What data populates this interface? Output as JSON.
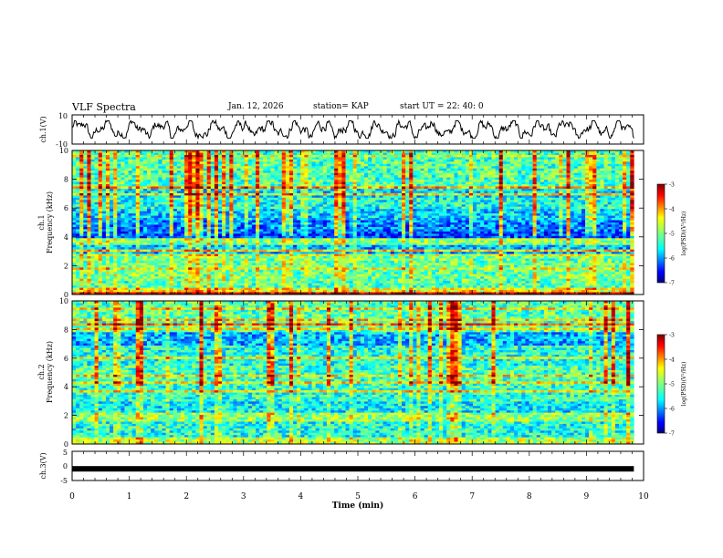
{
  "header": {
    "title": "VLF Spectra",
    "date": "Jan. 12, 2026",
    "station": "station= KAP",
    "start": "start UT =  22: 40: 0"
  },
  "chart_data": [
    {
      "type": "line",
      "panel": "ch1-waveform",
      "ylabel": "ch.1(V)",
      "ylim": [
        -10,
        10
      ],
      "y_tick_labels": [
        "10",
        "-10"
      ],
      "x_range": [
        0,
        9.83
      ],
      "description_values": "noisy waveform around 0 V with excursions about ±4 V"
    },
    {
      "type": "heatmap",
      "panel": "ch1-spectrogram",
      "ylabel": "ch.1\nFrequency (kHz)",
      "ylim": [
        0,
        10
      ],
      "y_tick_labels": [
        "0",
        "2",
        "4",
        "6",
        "8",
        "10"
      ],
      "xlim": [
        0,
        9.83
      ],
      "colorbar": {
        "label": "log(PSD)(V²/Hz)",
        "range": [
          -7,
          -3
        ],
        "tick_labels": [
          "-3",
          "-4",
          "-5",
          "-6",
          "-7"
        ]
      }
    },
    {
      "type": "heatmap",
      "panel": "ch2-spectrogram",
      "ylabel": "ch.2\nFrequency (kHz)",
      "ylim": [
        0,
        10
      ],
      "y_tick_labels": [
        "0",
        "2",
        "4",
        "6",
        "8",
        "10"
      ],
      "xlim": [
        0,
        9.83
      ],
      "colorbar": {
        "label": "log(PSD)(V²/Hz)",
        "range": [
          -7,
          -3
        ],
        "tick_labels": [
          "-3",
          "-4",
          "-5",
          "-6",
          "-7"
        ]
      }
    },
    {
      "type": "line",
      "panel": "ch3-waveform",
      "ylabel": "ch.3(V)",
      "ylim": [
        -5,
        5
      ],
      "y_tick_labels": [
        "5",
        "0",
        "-5"
      ],
      "x_range": [
        0,
        9.83
      ],
      "description_values": "constant -1 V (thick trace)",
      "values": [
        -1,
        -1
      ]
    }
  ],
  "x_axis": {
    "label": "Time (min)",
    "xlim": [
      0,
      10
    ],
    "ticks": [
      0,
      1,
      2,
      3,
      4,
      5,
      6,
      7,
      8,
      9,
      10
    ],
    "tick_labels": [
      "0",
      "1",
      "2",
      "3",
      "4",
      "5",
      "6",
      "7",
      "8",
      "9",
      "10"
    ]
  },
  "colors": {
    "cmap": [
      "#00007f",
      "#0000ff",
      "#007fff",
      "#00ffff",
      "#7fff7f",
      "#ffff00",
      "#ff7f00",
      "#ff0000",
      "#7f0000"
    ]
  }
}
